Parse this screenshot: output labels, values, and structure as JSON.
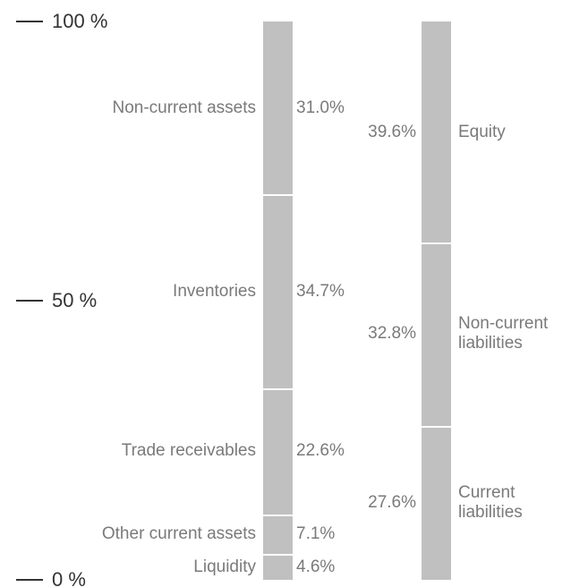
{
  "chart_data": {
    "type": "stacked_bar",
    "ylim": [
      0,
      100
    ],
    "yticks": [
      {
        "value": 0,
        "label": "0 %"
      },
      {
        "value": 50,
        "label": "50 %"
      },
      {
        "value": 100,
        "label": "100 %"
      }
    ],
    "color": "#c0c0c0",
    "columns": [
      {
        "segments": [
          {
            "name": "Liquidity",
            "value": 4.6,
            "value_label": "4.6%"
          },
          {
            "name": "Other current assets",
            "value": 7.1,
            "value_label": "7.1%"
          },
          {
            "name": "Trade receivables",
            "value": 22.6,
            "value_label": "22.6%"
          },
          {
            "name": "Inventories",
            "value": 34.7,
            "value_label": "34.7%"
          },
          {
            "name": "Non-current assets",
            "value": 31.0,
            "value_label": "31.0%"
          }
        ]
      },
      {
        "segments": [
          {
            "name": "Current liabilities",
            "value": 27.6,
            "value_label": "27.6%"
          },
          {
            "name": "Non-current liabilities",
            "value": 32.8,
            "value_label": "32.8%"
          },
          {
            "name": "Equity",
            "value": 39.6,
            "value_label": "39.6%"
          }
        ]
      }
    ]
  }
}
